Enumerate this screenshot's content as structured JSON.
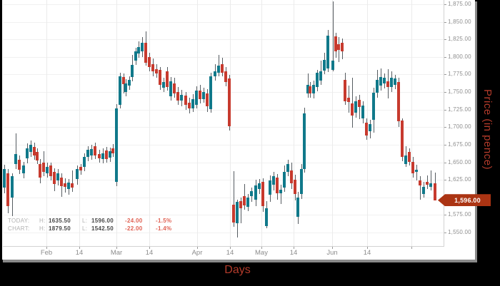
{
  "colors": {
    "background": "#000000",
    "panel": "#ffffff",
    "up_candle": "#10798a",
    "down_candle": "#c73a2e",
    "wick": "#565c61",
    "grid": "#f1f1f1",
    "axis_text": "#8f8f8f",
    "accent_red_label": "#b33b2b",
    "price_tag_bg": "#ab3413",
    "legend_delta": "#e06153"
  },
  "chart_data": {
    "type": "candlestick",
    "xlabel": "Days",
    "ylabel": "Price (in pence)",
    "y_axis": {
      "min_tick": 1550,
      "max_tick": 1875,
      "step": 25
    },
    "ylim": [
      1530,
      1881
    ],
    "grid": "on",
    "y_ticks": [
      {
        "v": 1875,
        "label": "1,875.00"
      },
      {
        "v": 1850,
        "label": "1,850.00"
      },
      {
        "v": 1825,
        "label": "1,825.00"
      },
      {
        "v": 1800,
        "label": "1,800.00"
      },
      {
        "v": 1775,
        "label": "1,775.00"
      },
      {
        "v": 1750,
        "label": "1,750.00"
      },
      {
        "v": 1725,
        "label": "1,725.00"
      },
      {
        "v": 1700,
        "label": "1,700.00"
      },
      {
        "v": 1675,
        "label": "1,675.00"
      },
      {
        "v": 1650,
        "label": "1,650.00"
      },
      {
        "v": 1625,
        "label": "1,625.00"
      },
      {
        "v": 1600,
        "label": "1,600.00"
      },
      {
        "v": 1575,
        "label": "1,575.00"
      },
      {
        "v": 1550,
        "label": "1,550.00"
      }
    ],
    "x_ticks": [
      {
        "label": "Feb",
        "x": 65
      },
      {
        "label": "14",
        "x": 111
      },
      {
        "label": "Mar",
        "x": 163
      },
      {
        "label": "14",
        "x": 209
      },
      {
        "label": "Apr",
        "x": 276
      },
      {
        "label": "14",
        "x": 322
      },
      {
        "label": "May",
        "x": 366
      },
      {
        "label": "14",
        "x": 411
      },
      {
        "label": "Jun",
        "x": 465
      },
      {
        "label": "14",
        "x": 514
      },
      {
        "label": "",
        "x": 576
      }
    ],
    "price_marker": {
      "label": "1,596.00",
      "price": 1596
    },
    "legend": {
      "rows": [
        {
          "label": "TODAY:",
          "h_label": "H:",
          "h": "1635.50",
          "l_label": "L:",
          "l": "1596.00",
          "change": "-24.00",
          "change_pct": "-1.5%"
        },
        {
          "label": "CHART:",
          "h_label": "H:",
          "h": "1879.50",
          "l_label": "L:",
          "l": "1542.50",
          "change": "-22.00",
          "change_pct": "-1.4%"
        }
      ]
    },
    "candle_fields": [
      "x",
      "open",
      "high",
      "low",
      "close"
    ],
    "candles": [
      [
        6,
        1614,
        1646,
        1606,
        1640
      ],
      [
        11,
        1634,
        1640,
        1577,
        1588
      ],
      [
        17,
        1600,
        1634,
        1573,
        1630
      ],
      [
        22,
        1647,
        1691,
        1640,
        1662
      ],
      [
        27,
        1654,
        1660,
        1633,
        1639
      ],
      [
        33,
        1634,
        1651,
        1627,
        1645
      ],
      [
        38,
        1656,
        1677,
        1649,
        1670
      ],
      [
        43,
        1665,
        1681,
        1658,
        1675
      ],
      [
        48,
        1672,
        1678,
        1654,
        1660
      ],
      [
        52,
        1665,
        1670,
        1648,
        1653
      ],
      [
        56,
        1648,
        1655,
        1620,
        1628
      ],
      [
        61,
        1650,
        1666,
        1630,
        1636
      ],
      [
        66,
        1634,
        1650,
        1628,
        1643
      ],
      [
        71,
        1645,
        1650,
        1624,
        1630
      ],
      [
        76,
        1636,
        1641,
        1609,
        1619
      ],
      [
        81,
        1624,
        1640,
        1617,
        1634
      ],
      [
        86,
        1628,
        1634,
        1601,
        1616
      ],
      [
        91,
        1620,
        1627,
        1607,
        1615
      ],
      [
        96,
        1612,
        1626,
        1604,
        1621
      ],
      [
        101,
        1620,
        1638,
        1608,
        1614
      ],
      [
        108,
        1626,
        1645,
        1618,
        1640
      ],
      [
        113,
        1643,
        1648,
        1632,
        1638
      ],
      [
        118,
        1643,
        1663,
        1637,
        1658
      ],
      [
        123,
        1658,
        1673,
        1652,
        1668
      ],
      [
        128,
        1660,
        1675,
        1654,
        1669
      ],
      [
        133,
        1673,
        1678,
        1655,
        1660
      ],
      [
        139,
        1662,
        1668,
        1650,
        1656
      ],
      [
        144,
        1655,
        1670,
        1649,
        1663
      ],
      [
        149,
        1667,
        1672,
        1650,
        1655
      ],
      [
        154,
        1657,
        1671,
        1651,
        1666
      ],
      [
        158,
        1670,
        1676,
        1658,
        1663
      ],
      [
        163,
        1622,
        1733,
        1616,
        1727
      ],
      [
        168,
        1732,
        1778,
        1727,
        1772
      ],
      [
        173,
        1771,
        1776,
        1748,
        1761
      ],
      [
        176,
        1750,
        1768,
        1744,
        1762
      ],
      [
        181,
        1759,
        1772,
        1753,
        1767
      ],
      [
        185,
        1771,
        1803,
        1765,
        1789
      ],
      [
        190,
        1795,
        1813,
        1789,
        1808
      ],
      [
        194,
        1805,
        1822,
        1799,
        1814
      ],
      [
        199,
        1808,
        1828,
        1800,
        1820
      ],
      [
        204,
        1820,
        1836,
        1788,
        1792
      ],
      [
        209,
        1800,
        1806,
        1780,
        1786
      ],
      [
        214,
        1790,
        1798,
        1772,
        1780
      ],
      [
        219,
        1783,
        1790,
        1770,
        1776
      ],
      [
        224,
        1782,
        1786,
        1753,
        1760
      ],
      [
        229,
        1756,
        1770,
        1750,
        1764
      ],
      [
        234,
        1780,
        1786,
        1752,
        1757
      ],
      [
        239,
        1744,
        1771,
        1738,
        1765
      ],
      [
        244,
        1762,
        1770,
        1742,
        1748
      ],
      [
        249,
        1750,
        1757,
        1732,
        1738
      ],
      [
        254,
        1738,
        1753,
        1730,
        1746
      ],
      [
        260,
        1745,
        1750,
        1725,
        1732
      ],
      [
        265,
        1735,
        1742,
        1720,
        1727
      ],
      [
        270,
        1727,
        1747,
        1722,
        1740
      ],
      [
        275,
        1732,
        1758,
        1727,
        1752
      ],
      [
        280,
        1752,
        1760,
        1734,
        1740
      ],
      [
        285,
        1740,
        1756,
        1735,
        1750
      ],
      [
        290,
        1748,
        1754,
        1722,
        1730
      ],
      [
        295,
        1726,
        1778,
        1721,
        1772
      ],
      [
        301,
        1772,
        1790,
        1766,
        1780
      ],
      [
        306,
        1778,
        1803,
        1772,
        1788
      ],
      [
        311,
        1790,
        1799,
        1772,
        1778
      ],
      [
        316,
        1780,
        1786,
        1758,
        1764
      ],
      [
        321,
        1769,
        1774,
        1695,
        1701
      ],
      [
        327,
        1590,
        1637,
        1558,
        1564
      ],
      [
        332,
        1563,
        1597,
        1542.5,
        1594
      ],
      [
        337,
        1595,
        1600,
        1563,
        1585
      ],
      [
        342,
        1602,
        1619,
        1582,
        1589
      ],
      [
        347,
        1587,
        1605,
        1580,
        1600
      ],
      [
        352,
        1602,
        1614,
        1594,
        1609
      ],
      [
        358,
        1597,
        1625,
        1588,
        1617
      ],
      [
        363,
        1612,
        1626,
        1605,
        1620
      ],
      [
        368,
        1622,
        1627,
        1579,
        1588
      ],
      [
        373,
        1559,
        1595,
        1556,
        1585
      ],
      [
        378,
        1604,
        1631,
        1594,
        1624
      ],
      [
        383,
        1618,
        1636,
        1610,
        1630
      ],
      [
        388,
        1628,
        1633,
        1597,
        1606
      ],
      [
        393,
        1606,
        1618,
        1591,
        1611
      ],
      [
        398,
        1614,
        1645,
        1608,
        1636
      ],
      [
        403,
        1636,
        1654,
        1630,
        1648
      ],
      [
        408,
        1638,
        1650,
        1612,
        1620
      ],
      [
        413,
        1625,
        1632,
        1596,
        1605
      ],
      [
        417,
        1572,
        1608,
        1562,
        1600
      ],
      [
        422,
        1605,
        1648,
        1598,
        1640
      ],
      [
        426,
        1640,
        1728,
        1635,
        1720
      ],
      [
        431,
        1748,
        1776,
        1742,
        1760
      ],
      [
        434,
        1758,
        1764,
        1742,
        1748
      ],
      [
        439,
        1748,
        1766,
        1741,
        1760
      ],
      [
        444,
        1757,
        1782,
        1751,
        1777
      ],
      [
        449,
        1766,
        1795,
        1760,
        1780
      ],
      [
        454,
        1781,
        1806,
        1775,
        1796
      ],
      [
        459,
        1784,
        1838,
        1778,
        1830
      ],
      [
        466,
        1782,
        1879.5,
        1780,
        1795
      ],
      [
        470,
        1829,
        1834,
        1799,
        1808
      ],
      [
        474,
        1818,
        1828,
        1793,
        1810
      ],
      [
        479,
        1820,
        1826,
        1797,
        1808
      ],
      [
        483,
        1767,
        1778,
        1732,
        1737
      ],
      [
        488,
        1742,
        1759,
        1721,
        1736
      ],
      [
        493,
        1734,
        1770,
        1699,
        1717
      ],
      [
        498,
        1721,
        1744,
        1714,
        1737
      ],
      [
        503,
        1739,
        1746,
        1711,
        1729
      ],
      [
        508,
        1712,
        1737,
        1705,
        1731
      ],
      [
        513,
        1706,
        1712,
        1682,
        1688
      ],
      [
        518,
        1694,
        1710,
        1684,
        1704
      ],
      [
        523,
        1710,
        1756,
        1692,
        1749
      ],
      [
        528,
        1749,
        1782,
        1742,
        1767
      ],
      [
        533,
        1759,
        1784,
        1752,
        1771
      ],
      [
        538,
        1762,
        1776,
        1755,
        1770
      ],
      [
        543,
        1765,
        1783,
        1741,
        1757
      ],
      [
        548,
        1757,
        1780,
        1750,
        1770
      ],
      [
        553,
        1760,
        1774,
        1754,
        1769
      ],
      [
        558,
        1764,
        1770,
        1700,
        1708
      ],
      [
        563,
        1709,
        1712,
        1652,
        1658
      ],
      [
        568,
        1648,
        1673,
        1643,
        1660
      ],
      [
        573,
        1665,
        1670,
        1645,
        1651
      ],
      [
        578,
        1651,
        1658,
        1628,
        1634
      ],
      [
        583,
        1636,
        1646,
        1624,
        1639
      ],
      [
        588,
        1624,
        1630,
        1597,
        1617
      ],
      [
        593,
        1605,
        1622,
        1600,
        1615
      ],
      [
        598,
        1622,
        1631,
        1612,
        1618
      ],
      [
        603,
        1615,
        1638,
        1610,
        1620
      ],
      [
        609,
        1620,
        1635.5,
        1596,
        1596
      ]
    ]
  }
}
